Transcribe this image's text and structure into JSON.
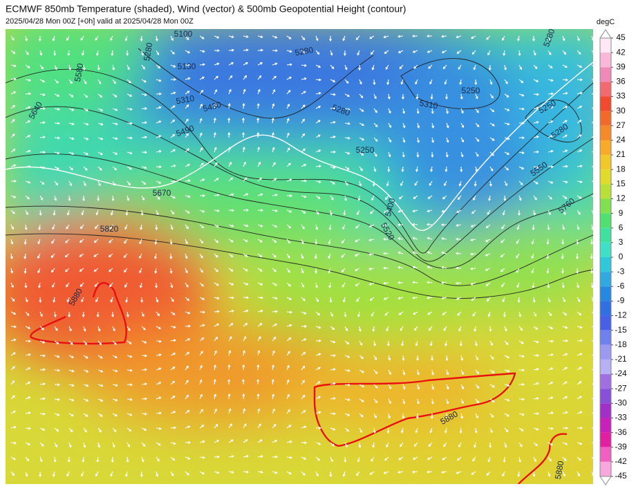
{
  "header": {
    "title": "ECMWF 850mb Temperature (shaded), Wind (vector) & 500mb Geopotential Height (contour)",
    "subtitle": "2025/04/28 Mon 00Z [+0h] valid at 2025/04/28 Mon 00Z"
  },
  "colorbar": {
    "unit": "degC",
    "ticks": [
      45,
      42,
      39,
      36,
      33,
      30,
      27,
      24,
      21,
      18,
      15,
      12,
      9,
      6,
      3,
      0,
      -3,
      -6,
      -9,
      -12,
      -15,
      -18,
      -21,
      -24,
      -27,
      -30,
      -33,
      -36,
      -39,
      -42,
      -45
    ],
    "colors": [
      "#fde8f4",
      "#f8b8d8",
      "#f08ab8",
      "#f06a70",
      "#f04a30",
      "#f26a2a",
      "#f58a2a",
      "#f8aa2a",
      "#f0c82a",
      "#e0da2a",
      "#b8e038",
      "#80e050",
      "#50e070",
      "#40e0a0",
      "#40e0c8",
      "#30c8d8",
      "#30a8e0",
      "#2888e0",
      "#3070e0",
      "#4860e8",
      "#7080ec",
      "#9a9af0",
      "#b8b0f4",
      "#a070e0",
      "#8850d8",
      "#a030c8",
      "#c820b8",
      "#e020a0",
      "#f060c0",
      "#f8a8dc"
    ]
  },
  "contour_labels": [
    5100,
    5280,
    5130,
    5310,
    5430,
    5490,
    5670,
    5820,
    5280,
    5280,
    5250,
    5310,
    5250,
    5250,
    5280,
    5550,
    5760,
    5400,
    5520,
    5880,
    5880,
    5640,
    5580,
    5280,
    5880
  ]
}
